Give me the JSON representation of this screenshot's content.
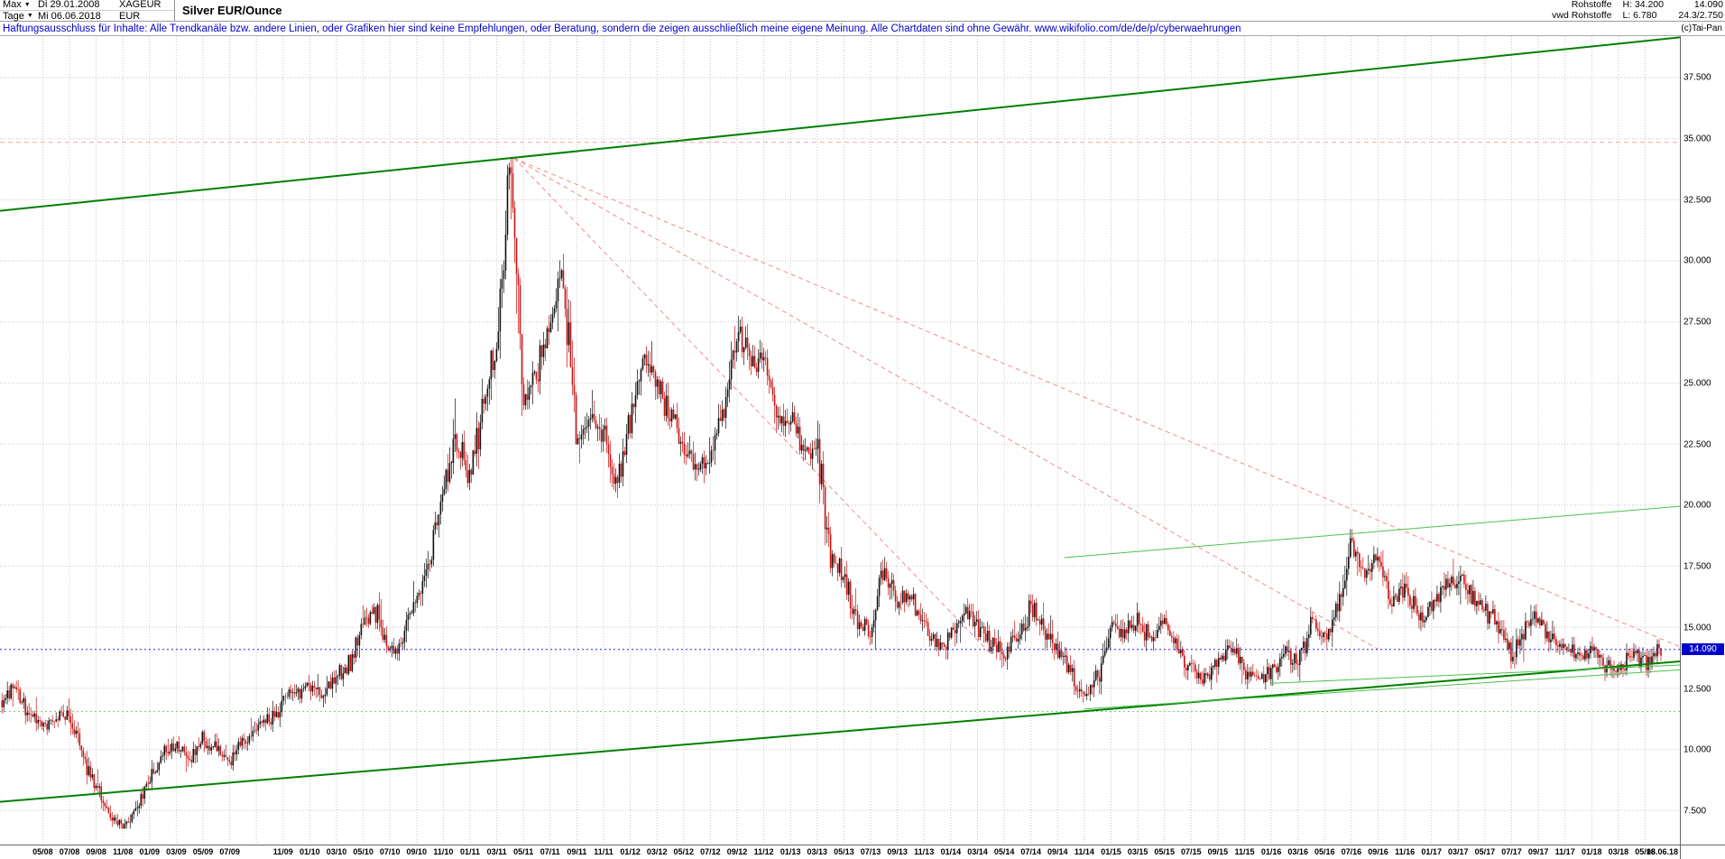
{
  "header": {
    "range_selector": "Max",
    "period_selector": "Tage",
    "start_date": "Di 29.01.2008",
    "end_date": "Mi 06.06.2018",
    "symbol": "XAGEUR",
    "currency": "EUR",
    "title": "Silver EUR/Ounce",
    "feed_line1": "Rohstoffe",
    "feed_line2": "vwd Rohstoffe",
    "high_label": "H: 34.200",
    "low_label": "L: 6.780",
    "last_price": "14.090",
    "extra_info": "24.3/2.750",
    "copyright": "(c)Tai-Pan"
  },
  "disclaimer": "Haftungsausschluss für Inhalte: Alle Trendkanäle bzw. andere Linien, oder Grafiken hier sind keine Empfehlungen, oder Beratung, sondern die zeigen ausschließlich meine eigene Meinung. Alle Chartdaten sind ohne Gewähr.  www.wikifolio.com/de/de/p/cyberwaehrungen",
  "chart_data": {
    "type": "candlestick",
    "title": "Silver EUR/Ounce",
    "instrument": "XAGEUR",
    "period_start": "2008-01-29",
    "period_end": "2018-06-06",
    "high": 34.2,
    "low": 6.78,
    "last_price": 14.09,
    "ylim": [
      6.1,
      39.2
    ],
    "mlim": [
      -0.2,
      125.6
    ],
    "months_start": "2008-02",
    "monthly_close": [
      12.0,
      12.7,
      11.4,
      11.0,
      11.2,
      11.5,
      9.6,
      8.6,
      7.2,
      6.9,
      7.6,
      8.6,
      9.9,
      10.1,
      9.6,
      10.4,
      10.0,
      9.6,
      10.2,
      11.0,
      11.1,
      12.1,
      12.3,
      12.6,
      12.2,
      12.9,
      13.6,
      15.2,
      15.6,
      13.9,
      14.6,
      16.2,
      17.6,
      20.5,
      23.0,
      20.8,
      24.5,
      26.5,
      34.2,
      24.5,
      25.5,
      27.5,
      29.5,
      22.5,
      23.5,
      23.0,
      20.8,
      23.5,
      26.3,
      24.8,
      23.8,
      22.4,
      21.6,
      22.2,
      23.8,
      27.2,
      25.8,
      26.0,
      23.4,
      23.6,
      22.2,
      22.4,
      18.0,
      17.2,
      15.2,
      15.0,
      17.6,
      16.0,
      16.3,
      15.0,
      14.2,
      14.6,
      15.8,
      15.0,
      14.3,
      13.9,
      14.6,
      15.8,
      14.9,
      14.0,
      13.3,
      12.1,
      13.0,
      15.2,
      14.8,
      15.3,
      14.4,
      15.2,
      14.1,
      13.3,
      12.9,
      13.6,
      14.3,
      13.2,
      12.9,
      13.1,
      13.9,
      13.5,
      15.2,
      14.5,
      15.8,
      18.5,
      17.4,
      17.7,
      16.1,
      16.6,
      15.4,
      15.9,
      16.9,
      16.9,
      16.3,
      15.6,
      15.3,
      13.9,
      15.0,
      15.4,
      14.5,
      14.2,
      13.9,
      14.1,
      13.5,
      13.3,
      13.8,
      13.5,
      14.09
    ],
    "y_ticks": [
      "37.500",
      "35.000",
      "32.500",
      "30.000",
      "27.500",
      "25.000",
      "22.500",
      "20.000",
      "17.500",
      "15.000",
      "12.500",
      "10.000",
      "7.500"
    ],
    "y_tick_values": [
      37.5,
      35.0,
      32.5,
      30.0,
      27.5,
      25.0,
      22.5,
      20.0,
      17.5,
      15.0,
      12.5,
      10.0,
      7.5
    ],
    "x_labels": [
      "05/08",
      "07/08",
      "09/08",
      "11/08",
      "01/09",
      "03/09",
      "05/09",
      "07/09",
      "11/09",
      "01/10",
      "03/10",
      "05/10",
      "07/10",
      "09/10",
      "11/10",
      "01/11",
      "03/11",
      "05/11",
      "07/11",
      "09/11",
      "11/11",
      "01/12",
      "03/12",
      "05/12",
      "07/12",
      "09/12",
      "11/12",
      "01/13",
      "03/13",
      "05/13",
      "07/13",
      "09/13",
      "11/13",
      "01/14",
      "03/14",
      "05/14",
      "07/14",
      "09/14",
      "11/14",
      "01/15",
      "03/15",
      "05/15",
      "07/15",
      "09/15",
      "11/15",
      "01/16",
      "03/16",
      "05/16",
      "07/16",
      "09/16",
      "11/16",
      "01/17",
      "03/17",
      "05/17",
      "07/17",
      "09/17",
      "11/17",
      "01/18",
      "03/18",
      "05/18"
    ],
    "x_end_label": "06.06.18",
    "grid": true,
    "legend": "none",
    "trend_lines": [
      {
        "name": "high-level-line",
        "layer": "under",
        "m1": -0.2,
        "v1": 34.85,
        "m2": 125.6,
        "v2": 34.85,
        "color": "#f4a6a6",
        "width": 1,
        "dash": "5,4"
      },
      {
        "name": "fan-line-1",
        "layer": "under",
        "m1": 38.3,
        "v1": 34.2,
        "m2": 125.6,
        "v2": 14.2,
        "color": "#f08c8c",
        "width": 1,
        "dash": "5,4"
      },
      {
        "name": "fan-line-2",
        "layer": "under",
        "m1": 38.3,
        "v1": 34.2,
        "m2": 103.0,
        "v2": 14.1,
        "color": "#f08c8c",
        "width": 1,
        "dash": "5,4"
      },
      {
        "name": "fan-line-3",
        "layer": "under",
        "m1": 38.3,
        "v1": 34.2,
        "m2": 74.0,
        "v2": 13.9,
        "color": "#f08c8c",
        "width": 1,
        "dash": "5,4"
      },
      {
        "name": "green-level-line",
        "layer": "under",
        "m1": -0.2,
        "v1": 11.55,
        "m2": 125.6,
        "v2": 11.55,
        "color": "#7ed07e",
        "width": 1,
        "dash": "2,3"
      },
      {
        "name": "upper-channel-line",
        "layer": "over",
        "m1": -0.2,
        "v1": 32.05,
        "m2": 125.6,
        "v2": 39.15,
        "color": "#008000",
        "width": 2
      },
      {
        "name": "lower-channel-line",
        "layer": "over",
        "m1": -0.2,
        "v1": 7.85,
        "m2": 125.6,
        "v2": 13.6,
        "color": "#008000",
        "width": 2
      },
      {
        "name": "support-line-2014",
        "layer": "over",
        "m1": 81.0,
        "v1": 11.65,
        "m2": 125.6,
        "v2": 13.25,
        "color": "#4fbf4f",
        "width": 1
      },
      {
        "name": "support-line-2016",
        "layer": "over",
        "m1": 95.0,
        "v1": 12.7,
        "m2": 125.6,
        "v2": 13.45,
        "color": "#4fbf4f",
        "width": 1
      },
      {
        "name": "resistance-line-right",
        "layer": "over",
        "m1": 79.5,
        "v1": 17.85,
        "m2": 125.6,
        "v2": 19.95,
        "color": "#4fbf4f",
        "width": 1
      },
      {
        "name": "last-price-line",
        "layer": "over",
        "m1": -0.2,
        "v1": 14.09,
        "m2": 125.6,
        "v2": 14.09,
        "color": "#2222ee",
        "width": 1,
        "dash": "2,3"
      }
    ],
    "colors": {
      "up": "#101010",
      "down": "#cc1111",
      "grid": "#c6c6c6",
      "label_bg": "#0000cc"
    }
  }
}
